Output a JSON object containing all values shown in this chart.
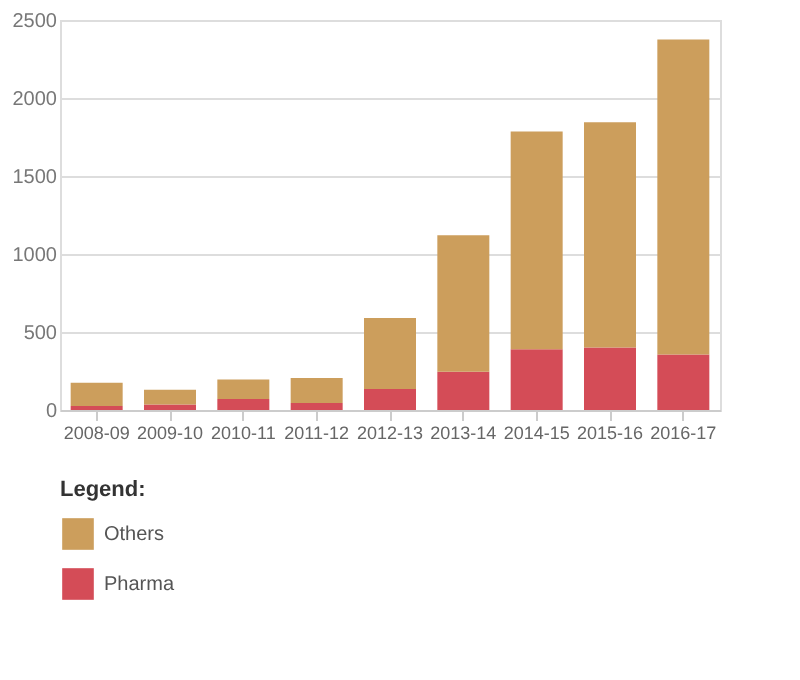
{
  "chart_data": {
    "type": "bar",
    "stacked": true,
    "legend_title": "Legend:",
    "legend": "bottom",
    "grid": "y",
    "categories": [
      "2008-09",
      "2009-10",
      "2010-11",
      "2011-12",
      "2012-13",
      "2013-14",
      "2014-15",
      "2015-16",
      "2016-17"
    ],
    "series": [
      {
        "name": "Pharma",
        "color": "#d44c57",
        "values": [
          25,
          35,
          70,
          45,
          135,
          245,
          390,
          400,
          355
        ]
      },
      {
        "name": "Others",
        "color": "#cc9e5c",
        "values": [
          150,
          95,
          125,
          160,
          455,
          875,
          1395,
          1445,
          2020
        ]
      }
    ],
    "ylim": [
      0,
      2500
    ],
    "yticks": [
      0,
      500,
      1000,
      1500,
      2000,
      2500
    ]
  }
}
